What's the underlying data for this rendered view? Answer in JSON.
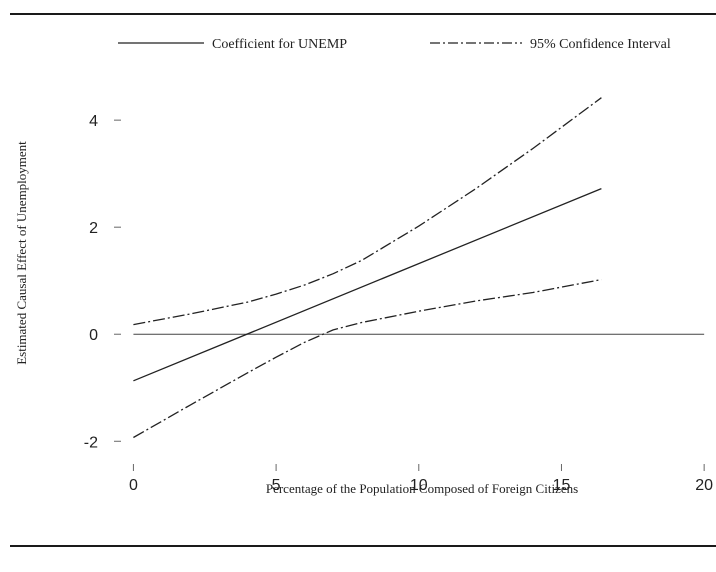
{
  "chart_data": {
    "type": "line",
    "xlabel": "Percentage of the Population Composed of Foreign Citizens",
    "ylabel": "Estimated Causal Effect of Unemployment",
    "xlim": [
      -0.4,
      20.1
    ],
    "ylim": [
      -2.35,
      4.75
    ],
    "x_ticks": [
      0,
      5,
      10,
      15,
      20
    ],
    "y_ticks": [
      -2,
      0,
      2,
      4
    ],
    "grid": false,
    "legend_position": "top",
    "legend": [
      {
        "label": "Coefficient for UNEMP",
        "style": "solid"
      },
      {
        "label": "95% Confidence Interval",
        "style": "dash-dot"
      }
    ],
    "series": [
      {
        "name": "Coefficient for UNEMP",
        "style": "solid",
        "x": [
          0,
          16.4
        ],
        "y": [
          -0.87,
          2.72
        ]
      },
      {
        "name": "95% Confidence Interval",
        "style": "dash-dot",
        "x": [
          0,
          2,
          4,
          5,
          6,
          7,
          8,
          10,
          12,
          14,
          16.4
        ],
        "y": [
          0.18,
          0.38,
          0.6,
          0.75,
          0.92,
          1.13,
          1.38,
          2.02,
          2.72,
          3.47,
          4.42
        ]
      },
      {
        "name": "95% Confidence Interval",
        "style": "dash-dot",
        "x": [
          0,
          2,
          4,
          5,
          6,
          7,
          8,
          10,
          12,
          14,
          16.4
        ],
        "y": [
          -1.93,
          -1.32,
          -0.72,
          -0.43,
          -0.15,
          0.08,
          0.22,
          0.43,
          0.62,
          0.78,
          1.02
        ]
      }
    ],
    "reference_line": {
      "y": 0,
      "x": [
        0,
        20
      ]
    }
  }
}
